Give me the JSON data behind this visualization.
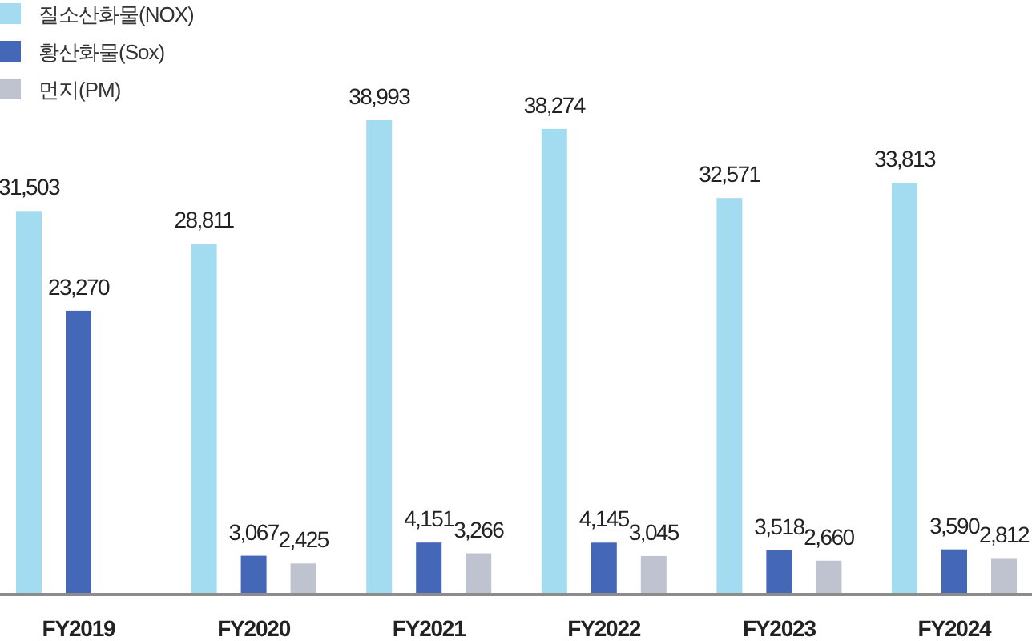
{
  "chart_data": {
    "type": "bar",
    "categories": [
      "FY2019",
      "FY2020",
      "FY2021",
      "FY2022",
      "FY2023",
      "FY2024"
    ],
    "series": [
      {
        "name": "질소산화물(NOX)",
        "color": "#a3dbf0",
        "values": [
          31503,
          28811,
          38993,
          38274,
          32571,
          33813
        ],
        "value_labels": [
          "31,503",
          "28,811",
          "38,993",
          "38,274",
          "32,571",
          "33,813"
        ]
      },
      {
        "name": "황산화물(Sox)",
        "color": "#4467b8",
        "values": [
          23270,
          3067,
          4151,
          4145,
          3518,
          3590
        ],
        "value_labels": [
          "23,270",
          "3,067",
          "4,151",
          "4,145",
          "3,518",
          "3,590"
        ]
      },
      {
        "name": "먼지(PM)",
        "color": "#bfc3cf",
        "values": [
          null,
          2425,
          3266,
          3045,
          2660,
          2812
        ],
        "value_labels": [
          null,
          "2,425",
          "3,266",
          "3,045",
          "2,660",
          "2,812"
        ]
      }
    ],
    "legend": "top left"
  }
}
